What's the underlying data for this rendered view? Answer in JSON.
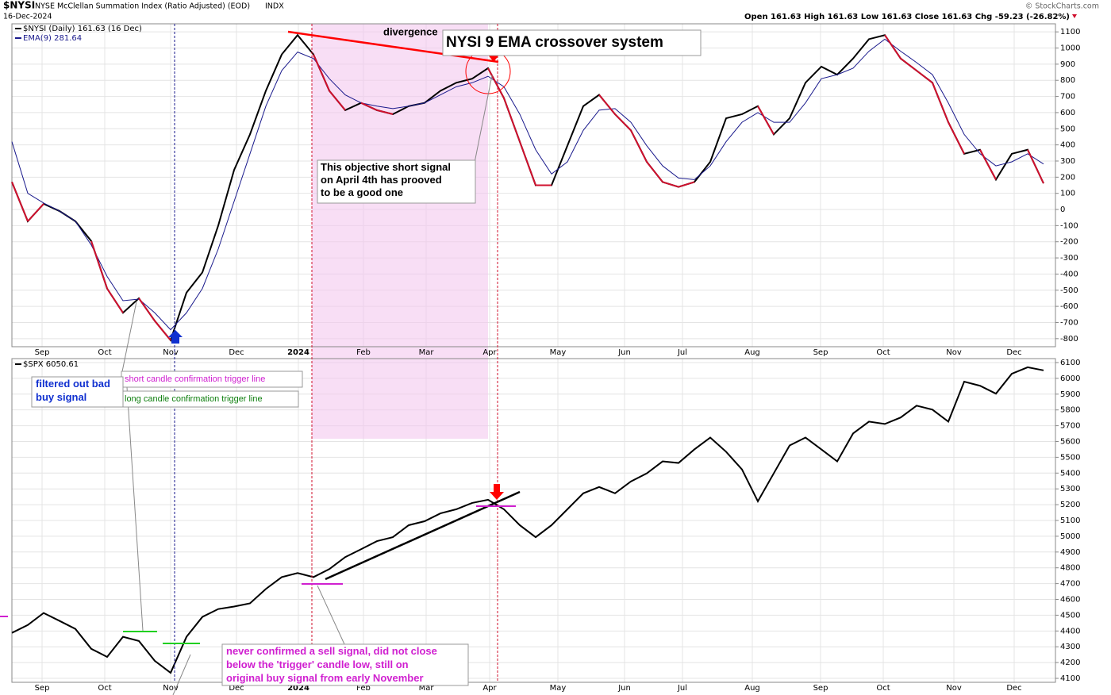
{
  "header": {
    "symbol": "$NYSI",
    "name": "NYSE McClellan Summation Index (Ratio Adjusted) (EOD)",
    "exchange": "INDX",
    "date": "16-Dec-2024",
    "credit": "© StockCharts.com",
    "quote": "Open 161.63  High 161.63  Low 161.63  Close 161.63  Chg -59.23 (-26.82%)"
  },
  "annotations": {
    "divergence": "divergence",
    "system": "NYSI 9 EMA crossover system",
    "short_signal": [
      "This objective short signal",
      "on April 4th has prooved",
      "to be a good one"
    ],
    "short_trigger": "short candle confirmation trigger line",
    "long_trigger": "long candle confirmation trigger line",
    "filtered": [
      "filtered out bad",
      "buy signal"
    ],
    "never": [
      "never confirmed a sell signal, did not close",
      "below the 'trigger' candle low, still on",
      "original buy signal from early November"
    ]
  },
  "chart_data": [
    {
      "type": "line",
      "grid": true,
      "xlim": [
        0,
        65.75
      ],
      "ylim": [
        -850,
        1150
      ],
      "yticks": [
        -800,
        -700,
        -600,
        -500,
        -400,
        -300,
        -200,
        -100,
        0,
        100,
        200,
        300,
        400,
        500,
        600,
        700,
        800,
        900,
        1000,
        1100
      ],
      "xticks": [
        {
          "value": 1.9,
          "label": "Sep"
        },
        {
          "value": 5.85,
          "label": "Oct"
        },
        {
          "value": 10,
          "label": "Nov"
        },
        {
          "value": 14.15,
          "label": "Dec"
        },
        {
          "value": 18.05,
          "label": "2024"
        },
        {
          "value": 22.15,
          "label": "Feb"
        },
        {
          "value": 26.1,
          "label": "Mar"
        },
        {
          "value": 30.1,
          "label": "Apr"
        },
        {
          "value": 34.4,
          "label": "May"
        },
        {
          "value": 38.6,
          "label": "Jun"
        },
        {
          "value": 42.25,
          "label": "Jul"
        },
        {
          "value": 46.65,
          "label": "Aug"
        },
        {
          "value": 50.95,
          "label": "Sep"
        },
        {
          "value": 54.9,
          "label": "Oct"
        },
        {
          "value": 59.35,
          "label": "Nov"
        },
        {
          "value": 63.15,
          "label": "Dec"
        }
      ],
      "below_color": "#d0102e",
      "series": [
        {
          "name": "$NYSI (Daily) 161.63 (16 Dec)",
          "color": "#000000",
          "values": [
            170,
            -73,
            35,
            -10,
            -73,
            -196,
            -490,
            -640,
            -550,
            -690,
            -810,
            -515,
            -390,
            -100,
            245,
            465,
            735,
            960,
            1080,
            960,
            735,
            615,
            660,
            615,
            590,
            640,
            660,
            735,
            785,
            810,
            875,
            690,
            420,
            150,
            150,
            395,
            640,
            710,
            590,
            490,
            295,
            170,
            140,
            170,
            295,
            565,
            590,
            640,
            465,
            565,
            785,
            885,
            835,
            935,
            1055,
            1080,
            935,
            860,
            785,
            540,
            345,
            370,
            185,
            345,
            370,
            161.63
          ]
        },
        {
          "name": "EMA(9) 281.64",
          "color": "#1a1a8c",
          "values": [
            420,
            100,
            40,
            -10,
            -73,
            -220,
            -415,
            -565,
            -555,
            -640,
            -745,
            -640,
            -490,
            -245,
            50,
            345,
            640,
            860,
            975,
            935,
            810,
            710,
            660,
            640,
            625,
            640,
            660,
            710,
            760,
            785,
            825,
            760,
            590,
            370,
            220,
            295,
            490,
            615,
            625,
            540,
            395,
            270,
            195,
            185,
            270,
            420,
            540,
            600,
            540,
            540,
            660,
            810,
            835,
            875,
            980,
            1055,
            980,
            910,
            835,
            660,
            465,
            345,
            270,
            295,
            345,
            281.64
          ]
        }
      ]
    },
    {
      "type": "line",
      "grid": true,
      "xlim": [
        0,
        65.75
      ],
      "ylim": [
        4075,
        6125
      ],
      "yticks": [
        4100,
        4200,
        4300,
        4400,
        4500,
        4600,
        4700,
        4800,
        4900,
        5000,
        5100,
        5200,
        5300,
        5400,
        5500,
        5600,
        5700,
        5800,
        5900,
        6000,
        6100
      ],
      "xticks": [
        {
          "value": 1.9,
          "label": "Sep"
        },
        {
          "value": 5.85,
          "label": "Oct"
        },
        {
          "value": 10,
          "label": "Nov"
        },
        {
          "value": 14.15,
          "label": "Dec"
        },
        {
          "value": 18.05,
          "label": "2024"
        },
        {
          "value": 22.15,
          "label": "Feb"
        },
        {
          "value": 26.1,
          "label": "Mar"
        },
        {
          "value": 30.1,
          "label": "Apr"
        },
        {
          "value": 34.4,
          "label": "May"
        },
        {
          "value": 38.6,
          "label": "Jun"
        },
        {
          "value": 42.25,
          "label": "Jul"
        },
        {
          "value": 46.65,
          "label": "Aug"
        },
        {
          "value": 50.95,
          "label": "Sep"
        },
        {
          "value": 54.9,
          "label": "Oct"
        },
        {
          "value": 59.35,
          "label": "Nov"
        },
        {
          "value": 63.15,
          "label": "Dec"
        }
      ],
      "series": [
        {
          "name": "$SPX 6050.61",
          "color": "#000000",
          "values": [
            4388,
            4438,
            4514,
            4464,
            4413,
            4287,
            4236,
            4363,
            4337,
            4211,
            4135,
            4363,
            4489,
            4539,
            4555,
            4575,
            4666,
            4741,
            4767,
            4741,
            4792,
            4868,
            4918,
            4969,
            4994,
            5070,
            5095,
            5145,
            5171,
            5211,
            5231,
            5171,
            5070,
            4994,
            5070,
            5171,
            5272,
            5312,
            5272,
            5347,
            5398,
            5474,
            5464,
            5550,
            5625,
            5535,
            5423,
            5221,
            5398,
            5575,
            5625,
            5550,
            5474,
            5651,
            5726,
            5711,
            5752,
            5827,
            5802,
            5726,
            5979,
            5953,
            5903,
            6029,
            6070,
            6050.61
          ]
        }
      ]
    }
  ]
}
